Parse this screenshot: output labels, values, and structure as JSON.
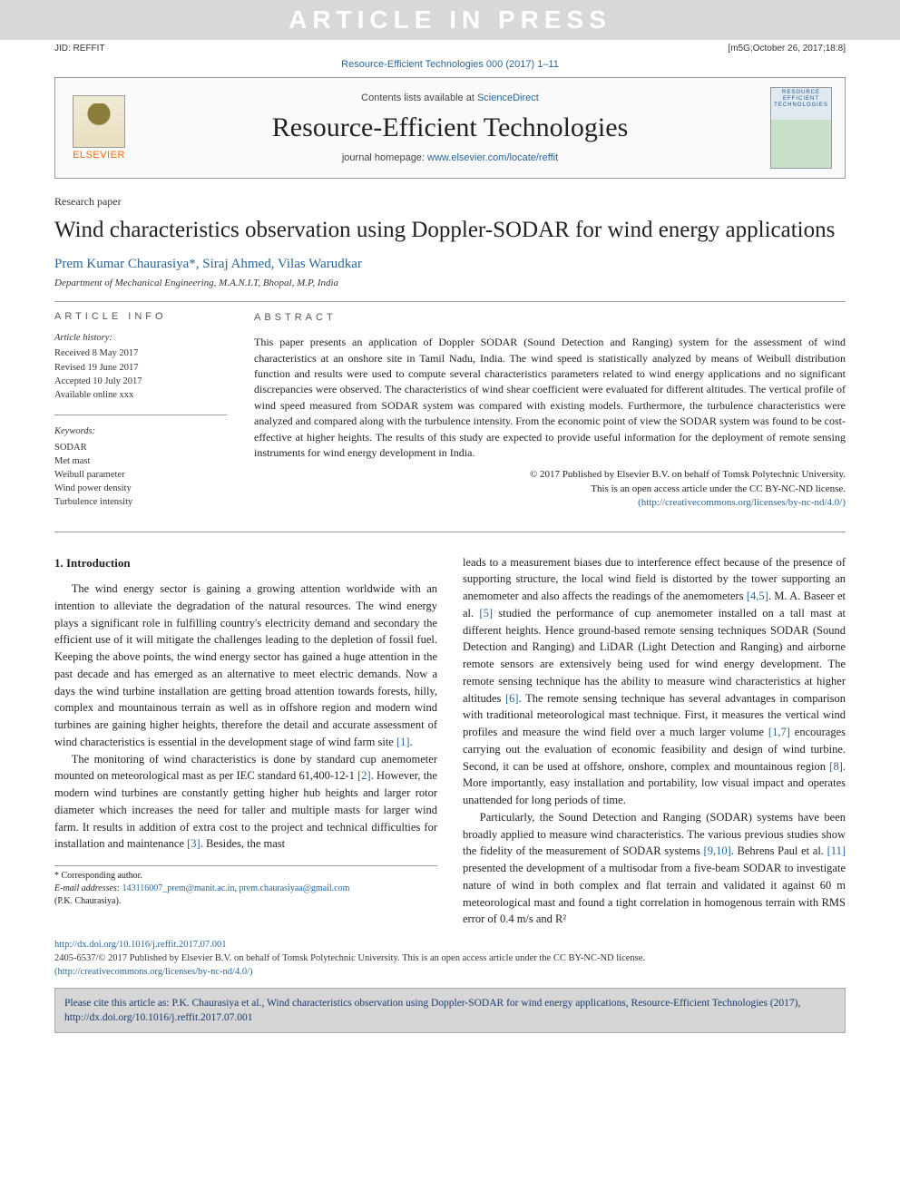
{
  "watermark": "ARTICLE IN PRESS",
  "top_meta": {
    "left": "JID: REFFIT",
    "right": "[m5G;October 26, 2017;18:8]"
  },
  "doi_header": "Resource-Efficient Technologies 000 (2017) 1–11",
  "header": {
    "contents_prefix": "Contents lists available at ",
    "contents_link": "ScienceDirect",
    "journal_title": "Resource-Efficient Technologies",
    "homepage_prefix": "journal homepage: ",
    "homepage_link": "www.elsevier.com/locate/reffit",
    "elsevier": "ELSEVIER",
    "cover_text": "RESOURCE EFFICIENT TECHNOLOGIES"
  },
  "paper": {
    "type": "Research paper",
    "title": "Wind characteristics observation using Doppler-SODAR for wind energy applications",
    "authors": "Prem Kumar Chaurasiya*, Siraj Ahmed, Vilas Warudkar",
    "affiliation": "Department of Mechanical Engineering, M.A.N.I.T, Bhopal, M.P, India"
  },
  "info": {
    "head": "ARTICLE INFO",
    "history_head": "Article history:",
    "history": [
      "Received 8 May 2017",
      "Revised 19 June 2017",
      "Accepted 10 July 2017",
      "Available online xxx"
    ],
    "keywords_head": "Keywords:",
    "keywords": [
      "SODAR",
      "Met mast",
      "Weibull parameter",
      "Wind power density",
      "Turbulence intensity"
    ]
  },
  "abstract": {
    "head": "ABSTRACT",
    "text": "This paper presents an application of Doppler SODAR (Sound Detection and Ranging) system for the assessment of wind characteristics at an onshore site in Tamil Nadu, India. The wind speed is statistically analyzed by means of Weibull distribution function and results were used to compute several characteristics parameters related to wind energy applications and no significant discrepancies were observed. The characteristics of wind shear coefficient were evaluated for different altitudes. The vertical profile of wind speed measured from SODAR system was compared with existing models. Furthermore, the turbulence characteristics were analyzed and compared along with the turbulence intensity. From the economic point of view the SODAR system was found to be cost-effective at higher heights. The results of this study are expected to provide useful information for the deployment of remote sensing instruments for wind energy development in India.",
    "copyright_line1": "© 2017 Published by Elsevier B.V. on behalf of Tomsk Polytechnic University.",
    "copyright_line2": "This is an open access article under the CC BY-NC-ND license.",
    "copyright_link": "(http://creativecommons.org/licenses/by-nc-nd/4.0/)"
  },
  "body": {
    "section1_head": "1. Introduction",
    "p1": "The wind energy sector is gaining a growing attention worldwide with an intention to alleviate the degradation of the natural resources. The wind energy plays a significant role in fulfilling country's electricity demand and secondary the efficient use of it will mitigate the challenges leading to the depletion of fossil fuel. Keeping the above points, the wind energy sector has gained a huge attention in the past decade and has emerged as an alternative to meet electric demands. Now a days the wind turbine installation are getting broad attention towards forests, hilly, complex and mountainous terrain as well as in offshore region and modern wind turbines are gaining higher heights, therefore the detail and accurate assessment of wind characteristics is essential in the development stage of wind farm site ",
    "p1_ref": "[1]",
    "p2": "The monitoring of wind characteristics is done by standard cup anemometer mounted on meteorological mast as per IEC standard 61,400-12-1 ",
    "p2_ref": "[2]",
    "p2b": ". However, the modern wind turbines are constantly getting higher hub heights and larger rotor diameter which increases the need for taller and multiple masts for larger wind farm. It results in addition of extra cost to the project and technical difficulties for installation and maintenance ",
    "p2_ref2": "[3]",
    "p2c": ". Besides, the mast",
    "p3a": "leads to a measurement biases due to interference effect because of the presence of supporting structure, the local wind field is distorted by the tower supporting an anemometer and also affects the readings of the anemometers ",
    "p3_ref1": "[4,5]",
    "p3b": ". M. A. Baseer et al. ",
    "p3_ref2": "[5]",
    "p3c": " studied the performance of cup anemometer installed on a tall mast at different heights. Hence ground-based remote sensing techniques SODAR (Sound Detection and Ranging) and LiDAR (Light Detection and Ranging) and airborne remote sensors are extensively being used for wind energy development. The remote sensing technique has the ability to measure wind characteristics at higher altitudes ",
    "p3_ref3": "[6]",
    "p3d": ". The remote sensing technique has several advantages in comparison with traditional meteorological mast technique. First, it measures the vertical wind profiles and measure the wind field over a much larger volume ",
    "p3_ref4": "[1,7]",
    "p3e": " encourages carrying out the evaluation of economic feasibility and design of wind turbine. Second, it can be used at offshore, onshore, complex and mountainous region ",
    "p3_ref5": "[8]",
    "p3f": ". More importantly, easy installation and portability, low visual impact and operates unattended for long periods of time.",
    "p4a": "Particularly, the Sound Detection and Ranging (SODAR) systems have been broadly applied to measure wind characteristics. The various previous studies show the fidelity of the measurement of SODAR systems ",
    "p4_ref1": "[9,10]",
    "p4b": ". Behrens Paul et al. ",
    "p4_ref2": "[11]",
    "p4c": " presented the development of a multisodar from a five-beam SODAR to investigate nature of wind in both complex and flat terrain and validated it against 60 m meteorological mast and found a tight correlation in homogenous terrain with RMS error of 0.4 m/s and R²"
  },
  "footnote": {
    "corr": "* Corresponding author.",
    "email_label": "E-mail addresses:",
    "email1": "143116007_prem@manit.ac.in",
    "email2": "prem.chaurasiyaa@gmail.com",
    "email_tail": "(P.K. Chaurasiya)."
  },
  "bottom": {
    "doi": "http://dx.doi.org/10.1016/j.reffit.2017.07.001",
    "issn_line": "2405-6537/© 2017 Published by Elsevier B.V. on behalf of Tomsk Polytechnic University. This is an open access article under the CC BY-NC-ND license.",
    "license_link": "(http://creativecommons.org/licenses/by-nc-nd/4.0/)"
  },
  "citebox": {
    "text": "Please cite this article as: P.K. Chaurasiya et al., Wind characteristics observation using Doppler-SODAR for wind energy applications, Resource-Efficient Technologies (2017), ",
    "link": "http://dx.doi.org/10.1016/j.reffit.2017.07.001"
  },
  "colors": {
    "link": "#2a6496",
    "watermark_bg": "#d8d8d8",
    "citebox_bg": "#d6d6d6",
    "citebox_text": "#1a3a6e",
    "elsevier_orange": "#ff6600"
  }
}
